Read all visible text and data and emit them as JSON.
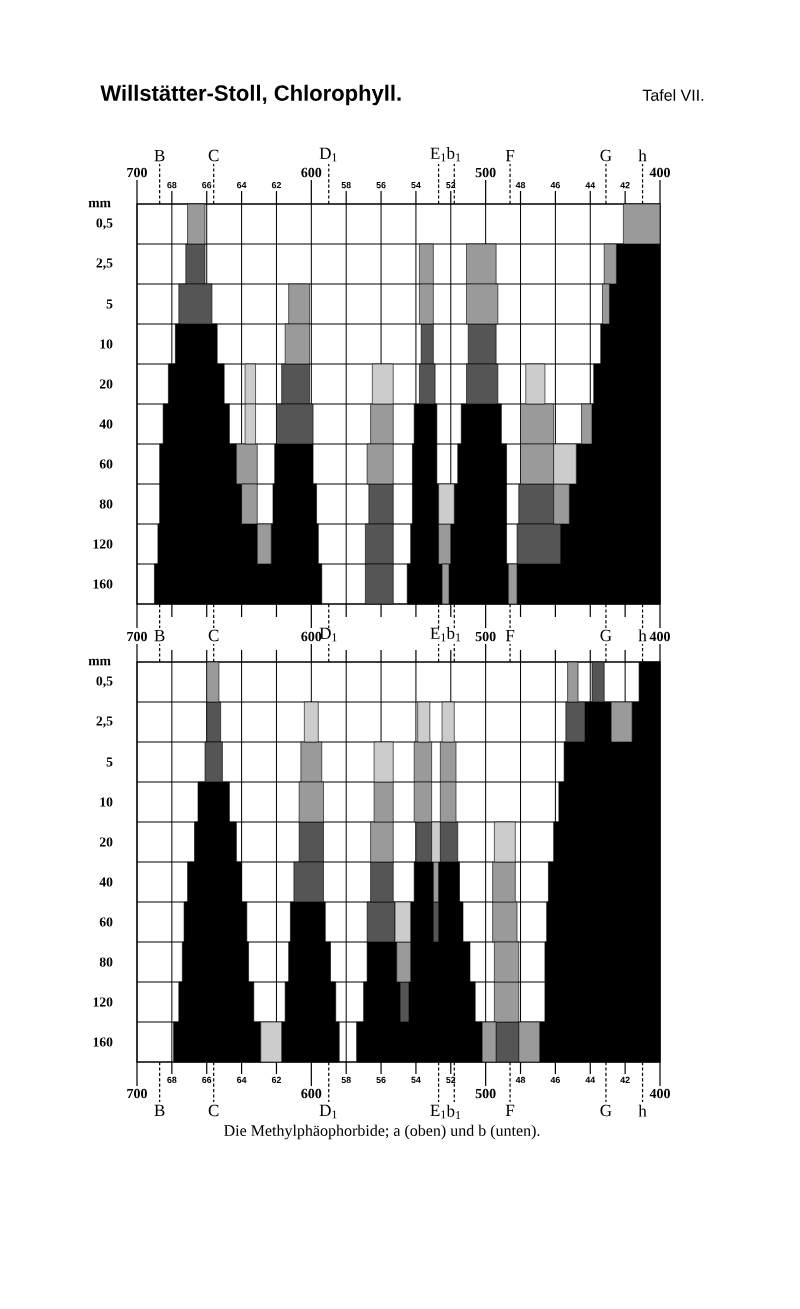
{
  "chart_data": [
    {
      "type": "bar",
      "orientation": "horizontal",
      "title": "Willstätter-Stoll, Chlorophyll.",
      "subtitle": "Tafel VII.",
      "ylabel": "mm",
      "categories": [
        "0,5",
        "2,5",
        "5",
        "10",
        "20",
        "40",
        "60",
        "80",
        "120",
        "160"
      ],
      "xlim": [
        700,
        400
      ],
      "xticks": [
        700,
        600,
        500,
        400
      ],
      "x2lim": [
        70,
        40
      ],
      "x2ticks": [
        68,
        66,
        64,
        62,
        58,
        56,
        54,
        52,
        48,
        46,
        44,
        42
      ],
      "ref_lines": [
        {
          "axis": "x",
          "value": 687,
          "label": "B",
          "line_style": "dashed"
        },
        {
          "axis": "x",
          "value": 656,
          "label": "C",
          "line_style": "dashed"
        },
        {
          "axis": "x",
          "value": 590,
          "label": "D$_{1}$",
          "line_style": "dashed"
        },
        {
          "axis": "x",
          "value": 527,
          "label": "E$_{1}$",
          "line_style": "dashed"
        },
        {
          "axis": "x",
          "value": 518,
          "label": "b$_{1}$",
          "line_style": "dashed"
        },
        {
          "axis": "x",
          "value": 486,
          "label": "F",
          "line_style": "dashed"
        },
        {
          "axis": "x",
          "value": 431,
          "label": "G",
          "line_style": "dashed"
        },
        {
          "axis": "x",
          "value": 410,
          "label": "h",
          "line_style": "dashed"
        }
      ],
      "grid": true,
      "series": [
        {
          "color": "#000000",
          "base": [
            null,
            null,
            null,
            654,
            650,
            647,
            643,
            640,
            631,
            594
          ],
          "values": [
            null,
            null,
            null,
            24,
            32,
            38,
            44,
            47,
            57,
            96
          ]
        },
        {
          "color": "#000000",
          "base": [
            null,
            null,
            null,
            null,
            null,
            null,
            599,
            597,
            596,
            null
          ],
          "values": [
            null,
            null,
            null,
            null,
            null,
            null,
            22,
            25,
            27,
            null
          ]
        },
        {
          "color": "#000000",
          "base": [
            null,
            null,
            null,
            null,
            null,
            528,
            528,
            527,
            527,
            525
          ],
          "values": [
            null,
            null,
            null,
            null,
            null,
            13,
            14,
            15,
            16,
            20
          ]
        },
        {
          "color": "#000000",
          "base": [
            null,
            null,
            null,
            null,
            null,
            491,
            488,
            488,
            488,
            487
          ],
          "values": [
            null,
            null,
            null,
            null,
            null,
            23,
            28,
            30,
            32,
            34
          ]
        },
        {
          "color": "#000000",
          "base": [
            null,
            400,
            400,
            400,
            400,
            400,
            400,
            400,
            400,
            400
          ],
          "values": [
            null,
            25,
            29,
            34,
            38,
            39,
            48,
            52,
            57,
            82
          ]
        },
        {
          "color": "#555555",
          "base": [
            null,
            661,
            657,
            null,
            null,
            null,
            null,
            null,
            null,
            null
          ],
          "values": [
            null,
            11,
            19,
            null,
            null,
            null,
            null,
            null,
            null,
            null
          ]
        },
        {
          "color": "#555555",
          "base": [
            null,
            null,
            null,
            null,
            601,
            599,
            null,
            null,
            null,
            null
          ],
          "values": [
            null,
            null,
            null,
            null,
            16,
            21,
            null,
            null,
            null,
            null
          ]
        },
        {
          "color": "#555555",
          "base": [
            null,
            null,
            null,
            null,
            null,
            null,
            null,
            553,
            553,
            553
          ],
          "values": [
            null,
            null,
            null,
            null,
            null,
            null,
            null,
            14,
            16,
            16
          ]
        },
        {
          "color": "#555555",
          "base": [
            null,
            null,
            null,
            530,
            529,
            null,
            null,
            null,
            null,
            null
          ],
          "values": [
            null,
            null,
            null,
            7,
            9,
            null,
            null,
            null,
            null,
            null
          ]
        },
        {
          "color": "#555555",
          "base": [
            null,
            null,
            null,
            494,
            493,
            null,
            null,
            null,
            null,
            null
          ],
          "values": [
            null,
            null,
            null,
            16,
            18,
            null,
            null,
            null,
            null,
            null
          ]
        },
        {
          "color": "#555555",
          "base": [
            null,
            null,
            null,
            null,
            null,
            null,
            null,
            461,
            457,
            null
          ],
          "values": [
            null,
            null,
            null,
            null,
            null,
            null,
            null,
            20,
            25,
            null
          ]
        },
        {
          "color": "#9a9a9a",
          "base": [
            661,
            null,
            601,
            601,
            null,
            null,
            631,
            631,
            623,
            null
          ],
          "values": [
            10,
            null,
            12,
            14,
            null,
            null,
            12,
            9,
            8,
            null
          ]
        },
        {
          "color": "#9a9a9a",
          "base": [
            null,
            530,
            530,
            null,
            null,
            553,
            553,
            null,
            520,
            521
          ],
          "values": [
            null,
            8,
            8,
            null,
            null,
            13,
            15,
            null,
            7,
            4
          ]
        },
        {
          "color": "#9a9a9a",
          "base": [
            null,
            494,
            493,
            null,
            null,
            461,
            461,
            452,
            null,
            482
          ],
          "values": [
            null,
            17,
            18,
            null,
            null,
            19,
            19,
            9,
            null,
            5
          ]
        },
        {
          "color": "#9a9a9a",
          "base": [
            400,
            425,
            429,
            null,
            null,
            439,
            null,
            null,
            null,
            null
          ],
          "values": [
            21,
            7,
            4,
            null,
            null,
            6,
            null,
            null,
            null,
            null
          ]
        },
        {
          "color": "#cccccc",
          "base": [
            null,
            null,
            null,
            null,
            632,
            632,
            null,
            518,
            null,
            null
          ],
          "values": [
            null,
            null,
            null,
            null,
            6,
            6,
            null,
            9,
            null,
            null
          ]
        },
        {
          "color": "#cccccc",
          "base": [
            null,
            null,
            null,
            null,
            553,
            null,
            448,
            null,
            null,
            null
          ],
          "values": [
            null,
            null,
            null,
            null,
            12,
            null,
            13,
            null,
            null,
            null
          ]
        },
        {
          "color": "#cccccc",
          "base": [
            null,
            null,
            null,
            null,
            466,
            null,
            null,
            null,
            null,
            null
          ],
          "values": [
            null,
            null,
            null,
            null,
            11,
            null,
            null,
            null,
            null,
            null
          ]
        }
      ]
    },
    {
      "type": "bar",
      "orientation": "horizontal",
      "ylabel": "mm",
      "categories": [
        "0,5",
        "2,5",
        "5",
        "10",
        "20",
        "40",
        "60",
        "80",
        "120",
        "160"
      ],
      "xlim": [
        700,
        400
      ],
      "xticks": [
        700,
        600,
        500,
        400
      ],
      "x2lim": [
        70,
        40
      ],
      "x2ticks": [
        68,
        66,
        64,
        62,
        58,
        56,
        54,
        52,
        48,
        46,
        44,
        42
      ],
      "ref_lines": [
        {
          "axis": "x",
          "value": 687,
          "label": "B",
          "line_style": "dashed"
        },
        {
          "axis": "x",
          "value": 656,
          "label": "C",
          "line_style": "dashed"
        },
        {
          "axis": "x",
          "value": 590,
          "label": "D$_{1}$",
          "line_style": "dashed"
        },
        {
          "axis": "x",
          "value": 527,
          "label": "E$_{1}$",
          "line_style": "dashed"
        },
        {
          "axis": "x",
          "value": 518,
          "label": "b$_{1}$",
          "line_style": "dashed"
        },
        {
          "axis": "x",
          "value": 486,
          "label": "F",
          "line_style": "dashed"
        },
        {
          "axis": "x",
          "value": 431,
          "label": "G",
          "line_style": "dashed"
        },
        {
          "axis": "x",
          "value": 410,
          "label": "h",
          "line_style": "dashed"
        }
      ],
      "grid": true,
      "annotations": [
        "700",
        "600",
        "500",
        "400",
        "Die Methylphäophorbide; a (oben) und b (unten)."
      ],
      "series": [
        {
          "color": "#000000",
          "base": [
            null,
            null,
            null,
            647,
            643,
            640,
            637,
            636,
            633,
            629
          ],
          "values": [
            null,
            null,
            null,
            18,
            24,
            31,
            36,
            38,
            43,
            50
          ]
        },
        {
          "color": "#000000",
          "base": [
            null,
            null,
            null,
            null,
            null,
            null,
            592,
            589,
            586,
            584
          ],
          "values": [
            null,
            null,
            null,
            null,
            null,
            null,
            20,
            24,
            29,
            33
          ]
        },
        {
          "color": "#000000",
          "base": [
            null,
            null,
            null,
            null,
            null,
            530,
            530,
            551,
            549,
            502
          ],
          "values": [
            null,
            null,
            null,
            null,
            null,
            11,
            13,
            17,
            21,
            72
          ]
        },
        {
          "color": "#000000",
          "base": [
            null,
            null,
            null,
            null,
            null,
            515,
            513,
            509,
            506,
            null
          ],
          "values": [
            null,
            null,
            null,
            null,
            null,
            12,
            14,
            34,
            38,
            null
          ]
        },
        {
          "color": "#000000",
          "base": [
            400,
            400,
            400,
            400,
            400,
            400,
            400,
            400,
            400,
            400
          ],
          "values": [
            12,
            16,
            55,
            58,
            61,
            64,
            65,
            66,
            66,
            69
          ]
        },
        {
          "color": "#000000",
          "base": [
            null,
            428,
            null,
            null,
            null,
            null,
            null,
            null,
            null,
            null
          ],
          "values": [
            null,
            15,
            null,
            null,
            null,
            null,
            null,
            null,
            null,
            null
          ]
        },
        {
          "color": "#555555",
          "base": [
            null,
            652,
            651,
            null,
            593,
            593,
            552,
            null,
            544,
            481
          ],
          "values": [
            null,
            8,
            10,
            null,
            14,
            17,
            16,
            null,
            5,
            13
          ]
        },
        {
          "color": "#555555",
          "base": [
            432,
            443,
            null,
            null,
            531,
            553,
            527,
            null,
            null,
            null
          ],
          "values": [
            7,
            11,
            null,
            null,
            9,
            13,
            3,
            null,
            null,
            null
          ]
        },
        {
          "color": "#555555",
          "base": [
            null,
            null,
            null,
            null,
            516,
            null,
            null,
            null,
            null,
            null
          ],
          "values": [
            null,
            null,
            null,
            null,
            10,
            null,
            null,
            null,
            null,
            null
          ]
        },
        {
          "color": "#9a9a9a",
          "base": [
            653,
            416,
            594,
            593,
            553,
            527,
            482,
            543,
            481,
            494
          ],
          "values": [
            7,
            12,
            12,
            14,
            13,
            3,
            14,
            8,
            14,
            8
          ]
        },
        {
          "color": "#9a9a9a",
          "base": [
            447,
            null,
            531,
            553,
            null,
            483,
            null,
            481,
            null,
            469
          ],
          "values": [
            6,
            null,
            10,
            11,
            null,
            13,
            null,
            14,
            null,
            12
          ]
        },
        {
          "color": "#9a9a9a",
          "base": [
            null,
            null,
            517,
            531,
            null,
            null,
            null,
            null,
            null,
            null
          ],
          "values": [
            null,
            null,
            9,
            10,
            null,
            null,
            null,
            null,
            null,
            null
          ]
        },
        {
          "color": "#9a9a9a",
          "base": [
            null,
            null,
            null,
            517,
            null,
            null,
            null,
            null,
            null,
            null
          ],
          "values": [
            null,
            null,
            null,
            9,
            null,
            null,
            null,
            null,
            null,
            null
          ]
        },
        {
          "color": "#cccccc",
          "base": [
            null,
            596,
            553,
            null,
            526,
            null,
            543,
            null,
            null,
            617
          ],
          "values": [
            null,
            8,
            11,
            null,
            5,
            null,
            9,
            null,
            null,
            12
          ]
        },
        {
          "color": "#cccccc",
          "base": [
            null,
            532,
            null,
            null,
            483,
            null,
            null,
            null,
            null,
            null
          ],
          "values": [
            null,
            7,
            null,
            null,
            12,
            null,
            null,
            null,
            null,
            null
          ]
        },
        {
          "color": "#cccccc",
          "base": [
            null,
            518,
            null,
            null,
            null,
            null,
            null,
            null,
            null,
            null
          ],
          "values": [
            null,
            7,
            null,
            null,
            null,
            null,
            null,
            null,
            null,
            null
          ]
        }
      ]
    }
  ]
}
